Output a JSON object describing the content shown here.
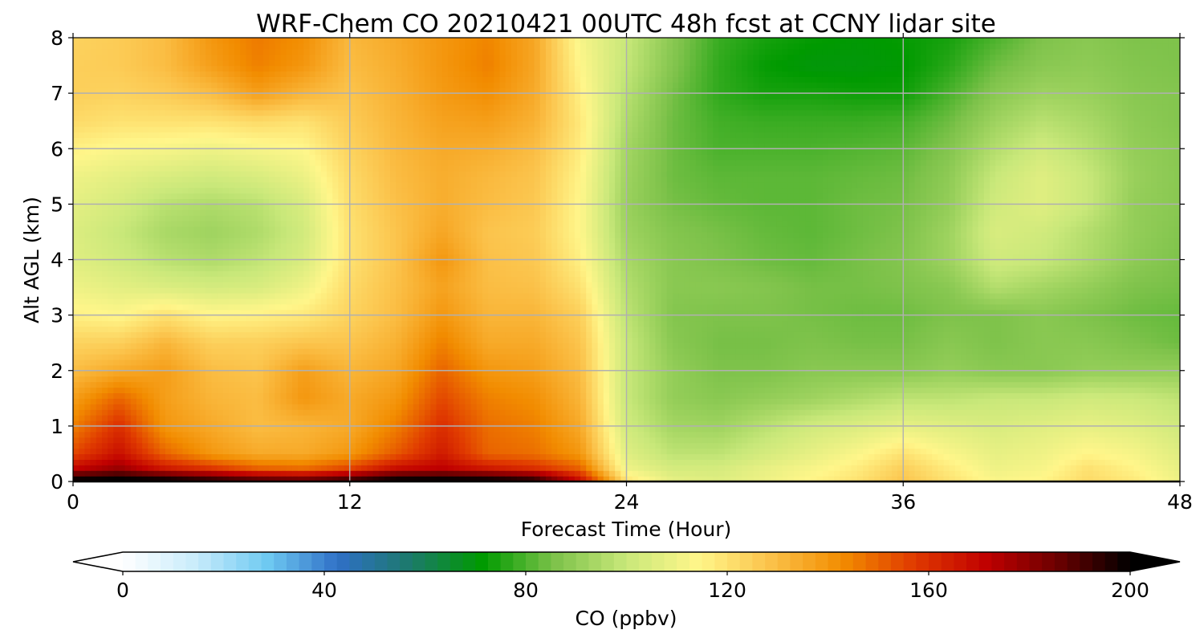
{
  "chart_data": {
    "type": "heatmap",
    "title": "WRF-Chem CO  20210421 00UTC 48h fcst at CCNY lidar site",
    "xlabel": "Forecast Time (Hour)",
    "ylabel": "Alt AGL (km)",
    "xlim": [
      0,
      48
    ],
    "ylim": [
      0,
      8
    ],
    "xticks": [
      0,
      12,
      24,
      36,
      48
    ],
    "yticks": [
      0,
      1,
      2,
      3,
      4,
      5,
      6,
      7,
      8
    ],
    "grid": true,
    "colorbar": {
      "label": "CO  (ppbv)",
      "orientation": "horizontal",
      "range": [
        0,
        200
      ],
      "ticks": [
        0,
        40,
        80,
        120,
        160,
        200
      ],
      "extend": "both",
      "colors": [
        "#ffffff",
        "#c9ecfb",
        "#6fcaf2",
        "#2f6fc6",
        "#1c7a6a",
        "#009a00",
        "#7dc24a",
        "#c9e87a",
        "#fff68a",
        "#fbc24a",
        "#f28c00",
        "#e03a00",
        "#c00000",
        "#6a0000",
        "#000000"
      ]
    },
    "x": [
      0,
      2,
      4,
      6,
      8,
      10,
      12,
      14,
      16,
      18,
      20,
      22,
      24,
      26,
      28,
      30,
      32,
      34,
      36,
      38,
      40,
      42,
      44,
      46,
      48
    ],
    "y": [
      0.0,
      0.25,
      0.5,
      1.0,
      1.5,
      2.0,
      2.5,
      3.0,
      3.5,
      4.0,
      4.5,
      5.0,
      5.5,
      6.0,
      6.5,
      7.0,
      7.5,
      8.0
    ],
    "z": [
      [
        205,
        205,
        205,
        200,
        195,
        192,
        198,
        205,
        205,
        205,
        200,
        170,
        120,
        108,
        106,
        110,
        115,
        120,
        128,
        120,
        113,
        115,
        122,
        118,
        110
      ],
      [
        170,
        178,
        165,
        158,
        150,
        148,
        155,
        168,
        172,
        165,
        160,
        150,
        110,
        103,
        103,
        108,
        112,
        117,
        125,
        117,
        110,
        112,
        120,
        115,
        108
      ],
      [
        155,
        168,
        150,
        140,
        135,
        135,
        140,
        152,
        165,
        150,
        148,
        140,
        106,
        98,
        98,
        103,
        108,
        113,
        120,
        113,
        108,
        110,
        115,
        112,
        106
      ],
      [
        145,
        160,
        140,
        135,
        130,
        132,
        135,
        145,
        160,
        148,
        145,
        135,
        102,
        93,
        92,
        97,
        102,
        105,
        108,
        106,
        104,
        106,
        108,
        106,
        102
      ],
      [
        138,
        150,
        138,
        132,
        130,
        140,
        135,
        140,
        155,
        145,
        142,
        132,
        100,
        90,
        88,
        90,
        92,
        95,
        98,
        98,
        100,
        100,
        102,
        101,
        98
      ],
      [
        130,
        135,
        138,
        130,
        128,
        138,
        132,
        136,
        150,
        140,
        138,
        130,
        100,
        90,
        86,
        86,
        88,
        88,
        88,
        90,
        88,
        88,
        90,
        90,
        90
      ],
      [
        124,
        125,
        132,
        125,
        125,
        128,
        128,
        133,
        145,
        135,
        135,
        128,
        100,
        88,
        85,
        85,
        86,
        85,
        85,
        88,
        86,
        88,
        88,
        86,
        84
      ],
      [
        116,
        114,
        120,
        115,
        116,
        118,
        124,
        130,
        140,
        132,
        132,
        125,
        98,
        87,
        86,
        86,
        85,
        84,
        84,
        86,
        86,
        88,
        86,
        84,
        83
      ],
      [
        110,
        107,
        105,
        103,
        104,
        110,
        122,
        129,
        137,
        130,
        129,
        120,
        96,
        88,
        88,
        87,
        85,
        85,
        86,
        88,
        96,
        93,
        90,
        86,
        85
      ],
      [
        106,
        102,
        97,
        95,
        98,
        104,
        120,
        128,
        140,
        129,
        127,
        116,
        94,
        88,
        86,
        84,
        83,
        85,
        87,
        92,
        102,
        100,
        95,
        89,
        86
      ],
      [
        105,
        100,
        94,
        92,
        95,
        102,
        120,
        128,
        136,
        128,
        126,
        114,
        92,
        87,
        85,
        83,
        82,
        84,
        86,
        92,
        104,
        102,
        96,
        90,
        87
      ],
      [
        107,
        103,
        97,
        95,
        97,
        104,
        121,
        129,
        134,
        130,
        127,
        114,
        91,
        85,
        83,
        82,
        82,
        84,
        85,
        90,
        102,
        106,
        100,
        90,
        88
      ],
      [
        110,
        107,
        104,
        102,
        104,
        109,
        122,
        130,
        134,
        131,
        128,
        115,
        92,
        84,
        82,
        82,
        82,
        83,
        84,
        89,
        100,
        106,
        100,
        91,
        88
      ],
      [
        116,
        113,
        112,
        110,
        112,
        114,
        124,
        131,
        135,
        134,
        130,
        117,
        93,
        84,
        80,
        80,
        80,
        81,
        82,
        87,
        96,
        102,
        97,
        90,
        88
      ],
      [
        122,
        120,
        120,
        120,
        122,
        120,
        126,
        132,
        137,
        138,
        133,
        118,
        95,
        84,
        79,
        78,
        78,
        78,
        79,
        84,
        92,
        97,
        94,
        89,
        87
      ],
      [
        125,
        124,
        126,
        130,
        138,
        132,
        128,
        133,
        139,
        142,
        135,
        116,
        97,
        85,
        77,
        74,
        74,
        73,
        73,
        80,
        88,
        92,
        91,
        88,
        87
      ],
      [
        125,
        126,
        130,
        138,
        145,
        140,
        130,
        134,
        140,
        145,
        136,
        114,
        99,
        87,
        77,
        72,
        70,
        70,
        71,
        76,
        84,
        88,
        89,
        87,
        86
      ],
      [
        124,
        126,
        130,
        140,
        146,
        142,
        131,
        135,
        140,
        144,
        136,
        112,
        100,
        88,
        78,
        74,
        72,
        71,
        72,
        74,
        80,
        86,
        88,
        86,
        86
      ]
    ]
  }
}
